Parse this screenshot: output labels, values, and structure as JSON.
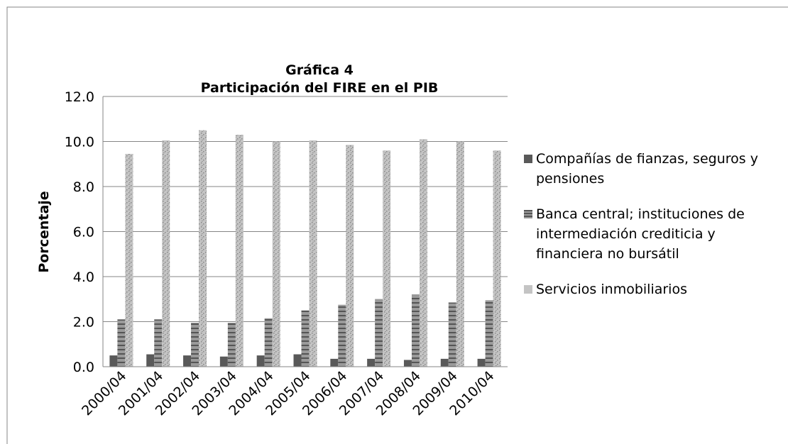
{
  "chart_data": {
    "type": "bar",
    "title": [
      "Gráfica 4",
      "Participación del FIRE en el PIB"
    ],
    "y_label": "Porcentaje",
    "categories": [
      "2000/04",
      "2001/04",
      "2002/04",
      "2003/04",
      "2004/04",
      "2005/04",
      "2006/04",
      "2007/04",
      "2008/04",
      "2009/04",
      "2010/04"
    ],
    "series": [
      {
        "name": "Compañías de fianzas, seguros y pensiones",
        "color": "#595959",
        "values": [
          0.5,
          0.55,
          0.5,
          0.45,
          0.5,
          0.55,
          0.35,
          0.35,
          0.3,
          0.35,
          0.35
        ]
      },
      {
        "name": "Banca central; instituciones de intermediación crediticia y financiera no bursátil",
        "color": "#9a9a9a",
        "values": [
          2.1,
          2.1,
          1.95,
          1.95,
          2.15,
          2.5,
          2.75,
          3.0,
          3.2,
          2.85,
          2.95
        ]
      },
      {
        "name": "Servicios inmobiliarios",
        "color": "#c4c4c4",
        "values": [
          9.45,
          10.05,
          10.5,
          10.3,
          10.0,
          10.05,
          9.85,
          9.6,
          10.1,
          10.0,
          9.6
        ]
      }
    ],
    "ylim": [
      0,
      12
    ],
    "yticks": [
      {
        "value": 0,
        "label": "0.0"
      },
      {
        "value": 2,
        "label": "2.0"
      },
      {
        "value": 4,
        "label": "4.0"
      },
      {
        "value": 6,
        "label": "6.0"
      },
      {
        "value": 8,
        "label": "8.0"
      },
      {
        "value": 10,
        "label": "10.0"
      },
      {
        "value": 12,
        "label": "12.0"
      }
    ],
    "grid": true,
    "legend": "right"
  }
}
